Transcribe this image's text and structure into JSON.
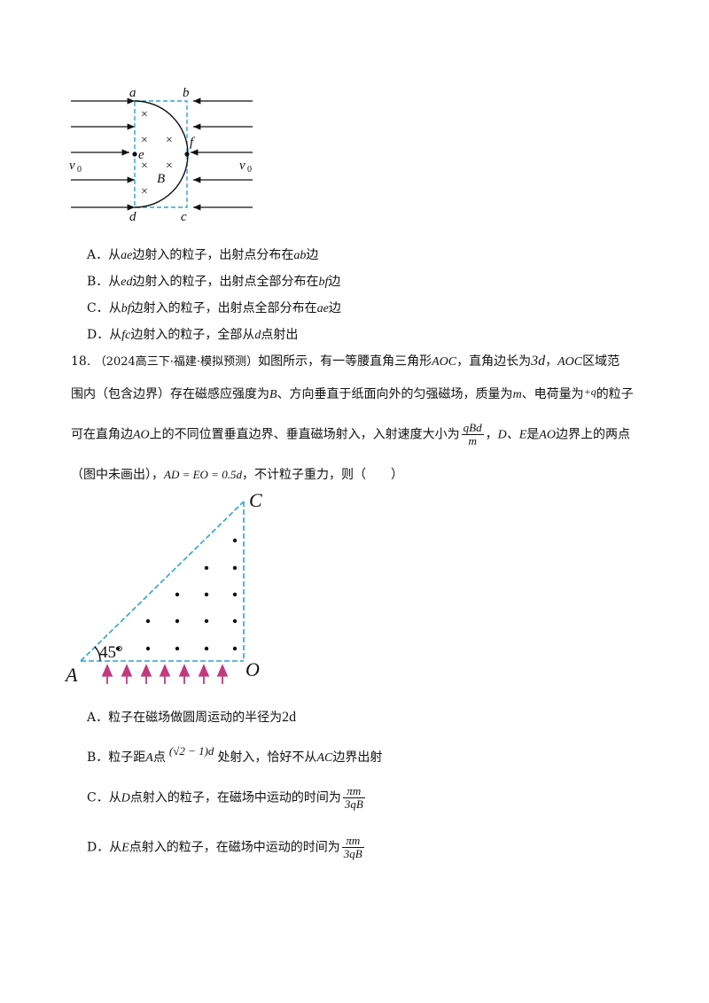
{
  "fig1": {
    "labels": {
      "a": "a",
      "b": "b",
      "c": "c",
      "d": "d",
      "e": "e",
      "f": "f",
      "B": "B",
      "v_left": "v",
      "v_right": "v",
      "sub": "0"
    },
    "cross_symbol": "×"
  },
  "q17_options": {
    "A": {
      "prefix": "A．从",
      "v1": "ae",
      "mid": "边射入的粒子，出射点分布在",
      "v2": "ab",
      "suffix": "边"
    },
    "B": {
      "prefix": "B．从",
      "v1": "ed",
      "mid": "边射入的粒子，出射点全部分布在",
      "v2": "bf",
      "suffix": "边"
    },
    "C": {
      "prefix": "C．从",
      "v1": "bf",
      "mid": "边射入的粒子，出射点全部分布在",
      "v2": "ae",
      "suffix": "边"
    },
    "D": {
      "prefix": "D．从",
      "v1": "fc",
      "mid": "边射入的粒子，全部从",
      "v2": "d",
      "suffix": "点射出"
    }
  },
  "q18": {
    "number": "18.",
    "source": "（2024高三下·福建·模拟预测）",
    "l1_a": "如图所示，有一等腰直角三角形",
    "l1_aoc": "AOC",
    "l1_b": "，直角边长为",
    "l1_3d": "3d",
    "l1_c": "，",
    "l1_aoc2": "AOC",
    "l1_d": "区域范",
    "l2_a": "围内（包含边界）存在磁感应强度为",
    "l2_B": "B",
    "l2_b": "、方向垂直于纸面向外的匀强磁场，质量为",
    "l2_m": "m",
    "l2_c": "、电荷量为",
    "l2_q": "+q",
    "l2_d": "的粒子",
    "l3_a": "可在直角边",
    "l3_AO": "AO",
    "l3_b": "上的不同位置垂直边界、垂直磁场射入，入射速度大小为",
    "l3_num": "qBd",
    "l3_den": "m",
    "l3_c": "，",
    "l3_DE": "D、E",
    "l3_d": "是",
    "l3_AO2": "AO",
    "l3_e": "边界上的两点",
    "l4_a": "（图中未画出），",
    "l4_eq": "AD = EO = 0.5d",
    "l4_b": "，不计粒子重力，则（　　）"
  },
  "fig2": {
    "C": "C",
    "A": "A",
    "O": "O",
    "angle": "45°"
  },
  "q18_options": {
    "A": {
      "text": "A．粒子在磁场做圆周运动的半径为",
      "math": "2d"
    },
    "B": {
      "text1": "B．粒子距",
      "A": "A",
      "text2": "点",
      "math": "(√2 − 1)d",
      "text3": "处射入，恰好不从",
      "AC": "AC",
      "text4": "边界出射"
    },
    "C": {
      "text1": "C．从",
      "pt": "D",
      "text2": "点射入的粒子，在磁场中运动的时间为",
      "num": "πm",
      "den": "3qB"
    },
    "D": {
      "text1": "D．从",
      "pt": "E",
      "text2": "点射入的粒子，在磁场中运动的时间为",
      "num": "πm",
      "den": "3qB"
    }
  }
}
